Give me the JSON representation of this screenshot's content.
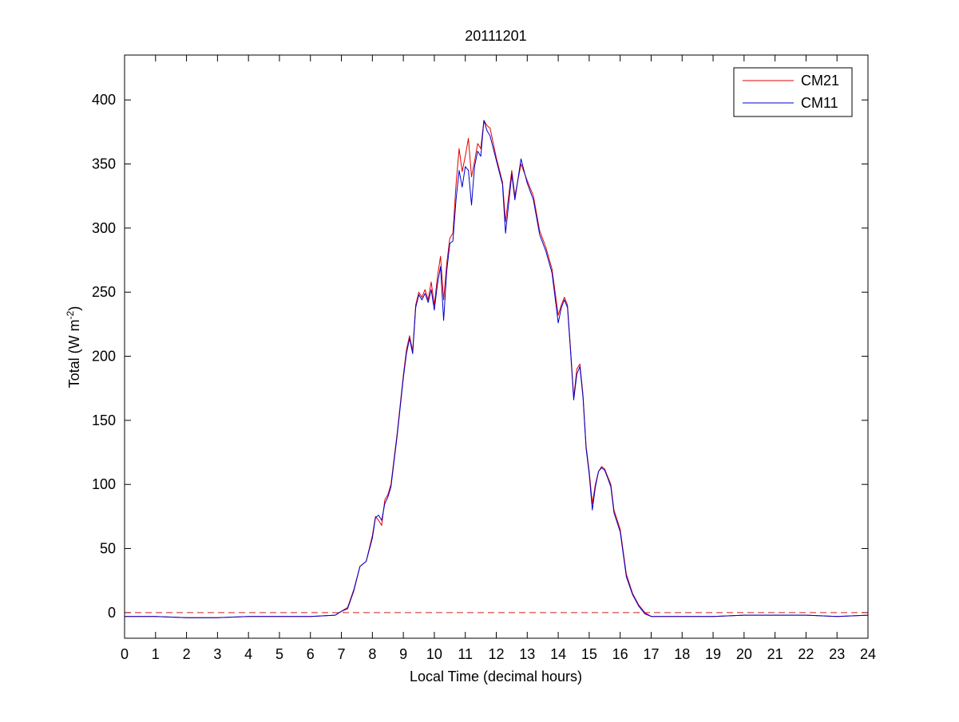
{
  "chart_data": {
    "type": "line",
    "title": "20111201",
    "xlabel": "Local Time (decimal hours)",
    "ylabel_main": "Total (W m",
    "ylabel_sup": "-2",
    "ylabel_close": ")",
    "xlim": [
      0,
      24
    ],
    "ylim": [
      -20,
      435
    ],
    "xticks": [
      0,
      1,
      2,
      3,
      4,
      5,
      6,
      7,
      8,
      9,
      10,
      11,
      12,
      13,
      14,
      15,
      16,
      17,
      18,
      19,
      20,
      21,
      22,
      23,
      24
    ],
    "yticks": [
      0,
      50,
      100,
      150,
      200,
      250,
      300,
      350,
      400
    ],
    "grid": false,
    "legend_position": "top-right",
    "reference_line": {
      "y": 0,
      "style": "dashed",
      "color": "#cc2222"
    },
    "series": [
      {
        "name": "CM21",
        "color": "#e00000",
        "points": [
          [
            0,
            -3
          ],
          [
            1,
            -3
          ],
          [
            2,
            -4
          ],
          [
            3,
            -4
          ],
          [
            4,
            -3
          ],
          [
            5,
            -3
          ],
          [
            6,
            -3
          ],
          [
            6.8,
            -2
          ],
          [
            7.0,
            1
          ],
          [
            7.2,
            4
          ],
          [
            7.4,
            18
          ],
          [
            7.6,
            36
          ],
          [
            7.8,
            40
          ],
          [
            8.0,
            60
          ],
          [
            8.1,
            75
          ],
          [
            8.2,
            72
          ],
          [
            8.3,
            68
          ],
          [
            8.4,
            88
          ],
          [
            8.5,
            92
          ],
          [
            8.6,
            100
          ],
          [
            8.8,
            140
          ],
          [
            9.0,
            185
          ],
          [
            9.1,
            205
          ],
          [
            9.2,
            216
          ],
          [
            9.3,
            204
          ],
          [
            9.4,
            240
          ],
          [
            9.5,
            250
          ],
          [
            9.6,
            246
          ],
          [
            9.7,
            252
          ],
          [
            9.8,
            244
          ],
          [
            9.9,
            258
          ],
          [
            10.0,
            240
          ],
          [
            10.1,
            262
          ],
          [
            10.2,
            278
          ],
          [
            10.3,
            244
          ],
          [
            10.4,
            272
          ],
          [
            10.5,
            292
          ],
          [
            10.6,
            296
          ],
          [
            10.7,
            334
          ],
          [
            10.8,
            362
          ],
          [
            10.9,
            344
          ],
          [
            11.0,
            356
          ],
          [
            11.1,
            370
          ],
          [
            11.2,
            340
          ],
          [
            11.3,
            352
          ],
          [
            11.4,
            366
          ],
          [
            11.5,
            362
          ],
          [
            11.6,
            384
          ],
          [
            11.7,
            380
          ],
          [
            11.8,
            378
          ],
          [
            12.0,
            355
          ],
          [
            12.2,
            336
          ],
          [
            12.3,
            305
          ],
          [
            12.5,
            345
          ],
          [
            12.6,
            325
          ],
          [
            12.8,
            350
          ],
          [
            13.0,
            337
          ],
          [
            13.2,
            325
          ],
          [
            13.4,
            298
          ],
          [
            13.6,
            285
          ],
          [
            13.8,
            268
          ],
          [
            14.0,
            232
          ],
          [
            14.1,
            240
          ],
          [
            14.2,
            246
          ],
          [
            14.3,
            240
          ],
          [
            14.4,
            205
          ],
          [
            14.5,
            168
          ],
          [
            14.6,
            190
          ],
          [
            14.7,
            194
          ],
          [
            14.8,
            170
          ],
          [
            14.9,
            130
          ],
          [
            15.0,
            110
          ],
          [
            15.1,
            85
          ],
          [
            15.2,
            100
          ],
          [
            15.3,
            110
          ],
          [
            15.4,
            114
          ],
          [
            15.5,
            112
          ],
          [
            15.6,
            106
          ],
          [
            15.7,
            100
          ],
          [
            15.8,
            80
          ],
          [
            16.0,
            65
          ],
          [
            16.2,
            30
          ],
          [
            16.4,
            15
          ],
          [
            16.6,
            6
          ],
          [
            16.8,
            0
          ],
          [
            17.0,
            -3
          ],
          [
            17.5,
            -3
          ],
          [
            18,
            -3
          ],
          [
            19,
            -3
          ],
          [
            20,
            -2
          ],
          [
            21,
            -2
          ],
          [
            22,
            -2
          ],
          [
            23,
            -3
          ],
          [
            24,
            -2
          ]
        ]
      },
      {
        "name": "CM11",
        "color": "#0000cc",
        "points": [
          [
            0,
            -3
          ],
          [
            1,
            -3
          ],
          [
            2,
            -4
          ],
          [
            3,
            -4
          ],
          [
            4,
            -3
          ],
          [
            5,
            -3
          ],
          [
            6,
            -3
          ],
          [
            6.8,
            -2
          ],
          [
            7.0,
            1
          ],
          [
            7.2,
            3
          ],
          [
            7.4,
            17
          ],
          [
            7.6,
            36
          ],
          [
            7.8,
            40
          ],
          [
            8.0,
            58
          ],
          [
            8.1,
            74
          ],
          [
            8.2,
            76
          ],
          [
            8.3,
            72
          ],
          [
            8.4,
            85
          ],
          [
            8.5,
            90
          ],
          [
            8.6,
            98
          ],
          [
            8.8,
            138
          ],
          [
            9.0,
            183
          ],
          [
            9.1,
            202
          ],
          [
            9.2,
            214
          ],
          [
            9.3,
            202
          ],
          [
            9.4,
            238
          ],
          [
            9.5,
            248
          ],
          [
            9.6,
            244
          ],
          [
            9.7,
            249
          ],
          [
            9.8,
            242
          ],
          [
            9.9,
            252
          ],
          [
            10.0,
            236
          ],
          [
            10.1,
            256
          ],
          [
            10.2,
            270
          ],
          [
            10.3,
            228
          ],
          [
            10.4,
            266
          ],
          [
            10.5,
            288
          ],
          [
            10.6,
            290
          ],
          [
            10.7,
            322
          ],
          [
            10.8,
            345
          ],
          [
            10.9,
            332
          ],
          [
            11.0,
            348
          ],
          [
            11.1,
            345
          ],
          [
            11.2,
            318
          ],
          [
            11.3,
            348
          ],
          [
            11.4,
            360
          ],
          [
            11.5,
            356
          ],
          [
            11.6,
            384
          ],
          [
            11.7,
            376
          ],
          [
            11.8,
            372
          ],
          [
            12.0,
            353
          ],
          [
            12.2,
            334
          ],
          [
            12.3,
            296
          ],
          [
            12.5,
            342
          ],
          [
            12.6,
            322
          ],
          [
            12.8,
            354
          ],
          [
            13.0,
            335
          ],
          [
            13.2,
            322
          ],
          [
            13.4,
            295
          ],
          [
            13.6,
            282
          ],
          [
            13.8,
            265
          ],
          [
            14.0,
            226
          ],
          [
            14.1,
            238
          ],
          [
            14.2,
            244
          ],
          [
            14.3,
            238
          ],
          [
            14.4,
            203
          ],
          [
            14.5,
            166
          ],
          [
            14.6,
            186
          ],
          [
            14.7,
            192
          ],
          [
            14.8,
            168
          ],
          [
            14.9,
            128
          ],
          [
            15.0,
            108
          ],
          [
            15.1,
            80
          ],
          [
            15.2,
            98
          ],
          [
            15.3,
            110
          ],
          [
            15.4,
            113
          ],
          [
            15.5,
            111
          ],
          [
            15.6,
            105
          ],
          [
            15.7,
            98
          ],
          [
            15.8,
            78
          ],
          [
            16.0,
            63
          ],
          [
            16.2,
            28
          ],
          [
            16.4,
            14
          ],
          [
            16.6,
            5
          ],
          [
            16.8,
            -1
          ],
          [
            17.0,
            -3
          ],
          [
            17.5,
            -3
          ],
          [
            18,
            -3
          ],
          [
            19,
            -3
          ],
          [
            20,
            -2
          ],
          [
            21,
            -2
          ],
          [
            22,
            -2
          ],
          [
            23,
            -3
          ],
          [
            24,
            -2
          ]
        ]
      }
    ]
  }
}
